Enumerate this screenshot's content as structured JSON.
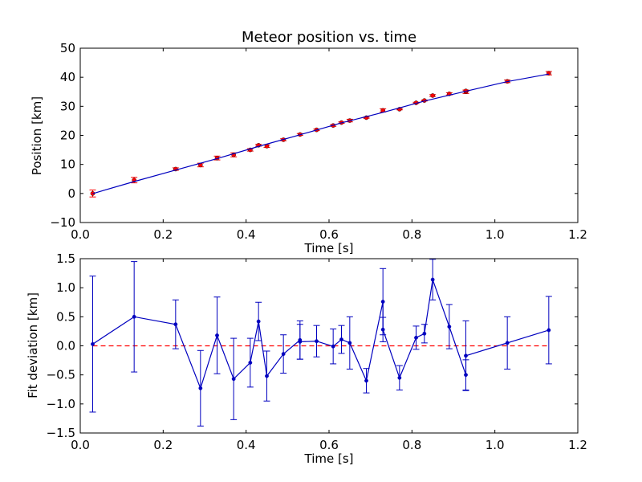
{
  "chart_data": [
    {
      "type": "scatter",
      "title": "Meteor position vs. time",
      "xlabel": "Time [s]",
      "ylabel": "Position [km]",
      "xlim": [
        0.0,
        1.2
      ],
      "ylim": [
        -10,
        50
      ],
      "xticks": [
        "0.0",
        "0.2",
        "0.4",
        "0.6",
        "0.8",
        "1.0",
        "1.2"
      ],
      "yticks": [
        "−10",
        "0",
        "10",
        "20",
        "30",
        "40",
        "50"
      ],
      "grid": false,
      "series": [
        {
          "kind": "errorbar-points",
          "color": "#ff0000",
          "x": [
            0.03,
            0.13,
            0.23,
            0.29,
            0.33,
            0.37,
            0.41,
            0.43,
            0.45,
            0.49,
            0.53,
            0.57,
            0.61,
            0.63,
            0.65,
            0.69,
            0.73,
            0.77,
            0.81,
            0.83,
            0.85,
            0.89,
            0.93,
            0.93,
            1.03,
            1.13
          ],
          "y": [
            0.0,
            4.6,
            8.4,
            9.8,
            12.2,
            13.3,
            15.0,
            16.6,
            16.3,
            18.5,
            20.3,
            21.9,
            23.4,
            24.4,
            25.1,
            26.1,
            28.6,
            29.0,
            31.2,
            32.0,
            33.7,
            34.3,
            35.0,
            35.3,
            38.6,
            41.4
          ],
          "yerr": [
            1.2,
            0.95,
            0.43,
            0.63,
            0.66,
            0.69,
            0.42,
            0.33,
            0.43,
            0.33,
            0.33,
            0.27,
            0.28,
            0.24,
            0.45,
            0.21,
            0.56,
            0.21,
            0.21,
            0.17,
            0.33,
            0.38,
            0.6,
            0.27,
            0.45,
            0.58
          ]
        },
        {
          "kind": "fit-line",
          "color": "#0000bf",
          "x": [
            0.03,
            0.13,
            0.23,
            0.33,
            0.43,
            0.53,
            0.63,
            0.73,
            0.83,
            0.93,
            1.03,
            1.13
          ],
          "y": [
            -0.05,
            4.1,
            8.05,
            12.0,
            16.2,
            20.2,
            24.3,
            27.9,
            31.8,
            35.2,
            38.5,
            41.1
          ]
        }
      ]
    },
    {
      "type": "line",
      "title": "",
      "xlabel": "Time [s]",
      "ylabel": "Fit deviation [km]",
      "xlim": [
        0.0,
        1.2
      ],
      "ylim": [
        -1.5,
        1.5
      ],
      "xticks": [
        "0.0",
        "0.2",
        "0.4",
        "0.6",
        "0.8",
        "1.0",
        "1.2"
      ],
      "yticks": [
        "−1.5",
        "−1.0",
        "−0.5",
        "0.0",
        "0.5",
        "1.0",
        "1.5"
      ],
      "grid": false,
      "reference_line": {
        "y": 0.0,
        "color": "#ff0000",
        "style": "dashed"
      },
      "series": [
        {
          "kind": "errorbar-line",
          "color": "#0000bf",
          "x": [
            0.03,
            0.13,
            0.23,
            0.29,
            0.33,
            0.37,
            0.41,
            0.43,
            0.45,
            0.49,
            0.53,
            0.53,
            0.57,
            0.61,
            0.63,
            0.65,
            0.69,
            0.73,
            0.73,
            0.77,
            0.81,
            0.83,
            0.85,
            0.89,
            0.93,
            0.93,
            1.03,
            1.13
          ],
          "y": [
            0.03,
            0.5,
            0.37,
            -0.73,
            0.18,
            -0.57,
            -0.29,
            0.42,
            -0.52,
            -0.14,
            0.1,
            0.07,
            0.08,
            -0.01,
            0.11,
            0.05,
            -0.6,
            0.76,
            0.28,
            -0.55,
            0.14,
            0.21,
            1.14,
            0.33,
            -0.5,
            -0.17,
            0.05,
            0.27
          ],
          "yerr": [
            1.17,
            0.95,
            0.42,
            0.65,
            0.66,
            0.7,
            0.42,
            0.33,
            0.43,
            0.33,
            0.33,
            0.3,
            0.27,
            0.3,
            0.24,
            0.45,
            0.21,
            0.57,
            0.21,
            0.21,
            0.2,
            0.16,
            0.35,
            0.38,
            0.26,
            0.6,
            0.45,
            0.58
          ]
        }
      ]
    }
  ]
}
